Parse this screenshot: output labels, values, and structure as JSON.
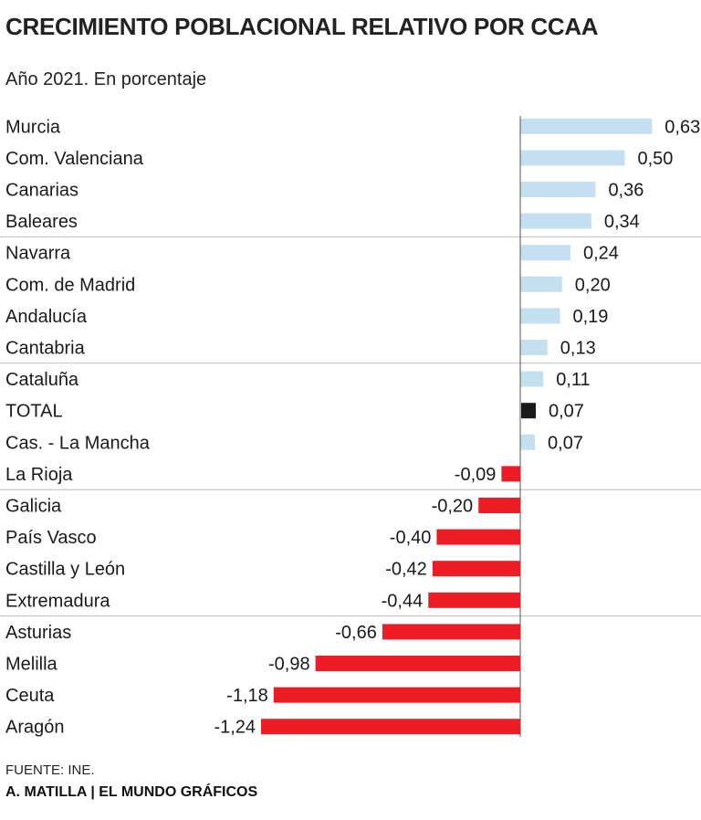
{
  "title": "CRECIMIENTO POBLACIONAL RELATIVO POR CCAA",
  "subtitle": "Año 2021. En porcentaje",
  "source": "FUENTE: INE.",
  "credit": "A. MATILLA | EL MUNDO GRÁFICOS",
  "colors": {
    "positive": "#c3dff0",
    "negative": "#ee1c25",
    "total": "#1a1a1a",
    "axis": "#555555",
    "divider": "#bbbbbb"
  },
  "chart_data": {
    "type": "bar",
    "orientation": "horizontal",
    "title": "CRECIMIENTO POBLACIONAL RELATIVO POR CCAA",
    "subtitle": "Año 2021. En porcentaje",
    "xlabel": "",
    "ylabel": "",
    "xlim": [
      -1.24,
      0.63
    ],
    "categories": [
      "Murcia",
      "Com. Valenciana",
      "Canarias",
      "Baleares",
      "Navarra",
      "Com. de Madrid",
      "Andalucía",
      "Cantabria",
      "Cataluña",
      "TOTAL",
      "Cas. - La Mancha",
      "La Rioja",
      "Galicia",
      "País Vasco",
      "Castilla y León",
      "Extremadura",
      "Asturias",
      "Melilla",
      "Ceuta",
      "Aragón"
    ],
    "values": [
      0.63,
      0.5,
      0.36,
      0.34,
      0.24,
      0.2,
      0.19,
      0.13,
      0.11,
      0.07,
      0.07,
      -0.09,
      -0.2,
      -0.4,
      -0.42,
      -0.44,
      -0.66,
      -0.98,
      -1.18,
      -1.24
    ],
    "value_labels": [
      "0,63",
      "0,50",
      "0,36",
      "0,34",
      "0,24",
      "0,20",
      "0,19",
      "0,13",
      "0,11",
      "0,07",
      "0,07",
      "-0,09",
      "-0,20",
      "-0,40",
      "-0,42",
      "-0,44",
      "-0,66",
      "-0,98",
      "-1,18",
      "-1,24"
    ],
    "highlight": "TOTAL",
    "group_separators_after": [
      "Baleares",
      "Cantabria",
      "La Rioja",
      "Extremadura"
    ]
  }
}
